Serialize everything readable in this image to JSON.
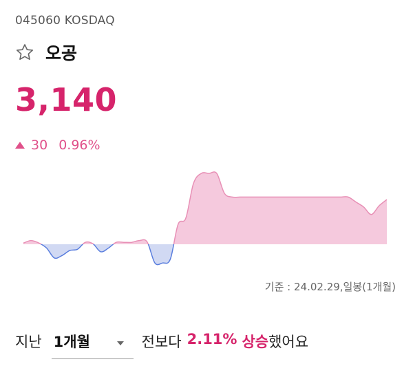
{
  "stock": {
    "code_line": "045060 KOSDAQ",
    "name": "오공",
    "price": "3,140",
    "change_value": "30",
    "change_rate": "0.96%",
    "direction": "up",
    "favorite_icon": "star-outline-icon"
  },
  "chart_data": {
    "type": "area",
    "baseline": 0,
    "ylim": [
      -1.05,
      3.1
    ],
    "x": [
      0,
      1,
      2,
      3,
      4,
      5,
      6,
      7,
      8,
      9,
      10,
      11,
      12,
      13,
      14,
      15,
      16,
      17,
      18,
      19,
      20,
      21,
      22,
      23,
      24,
      25,
      26,
      27,
      28,
      29,
      30,
      31,
      32,
      33,
      34,
      35,
      36,
      37,
      38,
      39,
      40,
      41,
      42,
      43,
      44,
      45,
      46,
      47
    ],
    "values": [
      0.05,
      0.15,
      0.05,
      -0.15,
      -0.55,
      -0.45,
      -0.25,
      -0.2,
      0.08,
      0.02,
      -0.3,
      -0.15,
      0.08,
      0.08,
      0.08,
      0.15,
      0.1,
      -0.75,
      -0.75,
      -0.6,
      0.8,
      1.05,
      2.45,
      2.85,
      2.85,
      2.85,
      2.05,
      1.9,
      1.9,
      1.9,
      1.9,
      1.9,
      1.9,
      1.9,
      1.9,
      1.9,
      1.9,
      1.9,
      1.9,
      1.9,
      1.9,
      1.9,
      1.9,
      1.7,
      1.5,
      1.2,
      1.55,
      1.8
    ],
    "colors": {
      "positive_fill": "#f5c9dd",
      "positive_line": "#e890b6",
      "negative_fill": "#d1d9f3",
      "negative_line": "#5a7ede"
    }
  },
  "basis_text": "기준 : 24.02.29,일봉(1개월)",
  "summary": {
    "prefix": "지난",
    "period_value": "1개월",
    "period_caret_icon": "caret-down-icon",
    "middle": "전보다",
    "percent": "2.11%",
    "direction_word": "상승",
    "suffix": "했어요"
  },
  "colors": {
    "up": "#d6246b",
    "up_light": "#e0508a"
  }
}
